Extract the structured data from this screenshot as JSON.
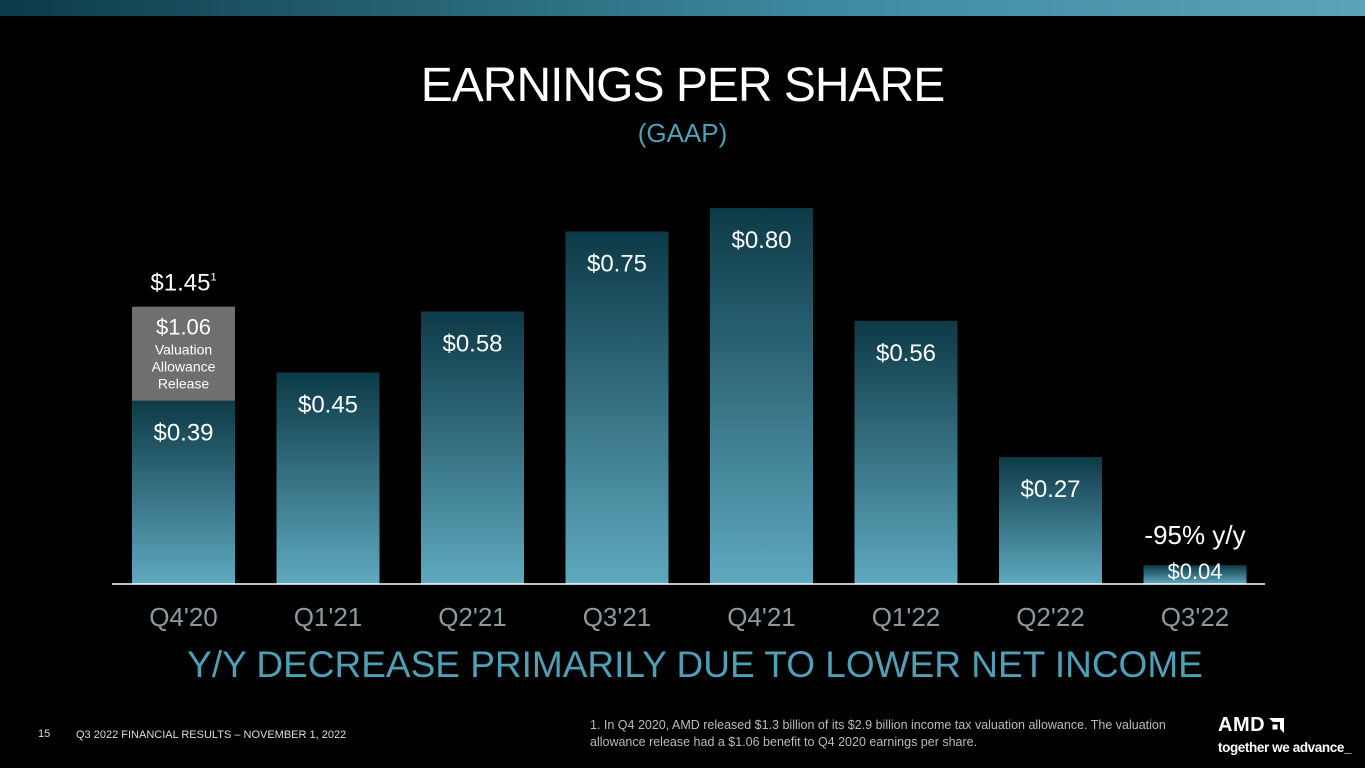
{
  "slide": {
    "title": "EARNINGS PER SHARE",
    "subtitle": "(GAAP)",
    "takeaway": "Y/Y DECREASE PRIMARILY DUE TO LOWER NET INCOME",
    "page_number": "15",
    "footer_left": "Q3 2022 FINANCIAL RESULTS – NOVEMBER 1, 2022",
    "footnote": "1. In Q4 2020, AMD released $1.3 billion of its $2.9 billion income tax valuation allowance. The valuation allowance release had a $1.06 benefit to Q4 2020 earnings per share.",
    "logo": {
      "wordmark": "AMD",
      "tagline": "together we advance_",
      "icon": "amd-arrow-icon"
    }
  },
  "colors": {
    "bar_top": "#0d3a47",
    "bar_bottom": "#5fa9bf",
    "stack_segment": "#6f6f6f",
    "accent": "#4f9fb6",
    "axis_line": "#ffffff"
  },
  "chart_data": {
    "type": "bar",
    "categories": [
      "Q4'20",
      "Q1'21",
      "Q2'21",
      "Q3'21",
      "Q4'21",
      "Q1'22",
      "Q2'22",
      "Q3'22"
    ],
    "values": [
      0.39,
      0.45,
      0.58,
      0.75,
      0.8,
      0.56,
      0.27,
      0.04
    ],
    "value_labels": [
      "$0.39",
      "$0.45",
      "$0.58",
      "$0.75",
      "$0.80",
      "$0.56",
      "$0.27",
      "$0.04"
    ],
    "stacked_segment": {
      "category": "Q4'20",
      "value": 1.06,
      "value_label": "$1.06",
      "label_lines": [
        "Valuation",
        "Allowance",
        "Release"
      ]
    },
    "total_label": {
      "category": "Q4'20",
      "text": "$1.45",
      "superscript": "1"
    },
    "annotation": {
      "category": "Q3'22",
      "text": "-95% y/y"
    },
    "ylim": [
      0,
      0.8
    ],
    "grid": false,
    "legend": "none"
  }
}
